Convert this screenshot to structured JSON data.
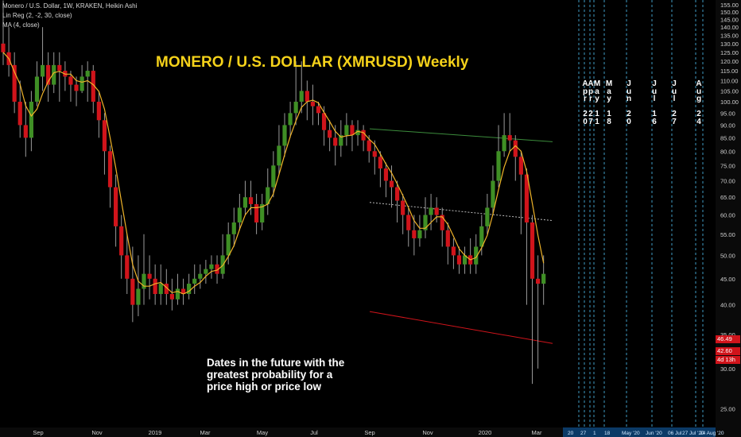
{
  "legend": {
    "line1": "Monero / U.S. Dollar, 1W, KRAKEN, Heikin Ashi",
    "line2": "Lin Reg (2, -2, 30, close)",
    "line3": "MA (4, close)"
  },
  "title": "MONERO / U.S. DOLLAR (XMRUSD) Weekly",
  "annotation": [
    "Dates in the future with the",
    "greatest probability for a",
    "price high or price low"
  ],
  "price_tags": {
    "current": "46.49",
    "low": "42.60",
    "countdown": "4d 13h"
  },
  "future_dates_vertical": [
    {
      "month": "Apr",
      "day": "20"
    },
    {
      "month": "Apr",
      "day": "27"
    },
    {
      "month": "May",
      "day": "11"
    },
    {
      "month": "May",
      "day": "18"
    },
    {
      "month": "Jun",
      "day": "20"
    },
    {
      "month": "Jul",
      "day": "16"
    },
    {
      "month": "Jul",
      "day": "27"
    },
    {
      "month": "Aug",
      "day": "24"
    }
  ],
  "future_date_axis_labels": [
    "20",
    "27",
    "1",
    "18",
    "May '20",
    "Jun '20",
    "06 Jul",
    "27 Jul '20",
    "24 Aug '20"
  ],
  "colors": {
    "background": "#000000",
    "bull": "#3f8f25",
    "bear": "#d0141b",
    "ma": "#f0b429",
    "channel_upper": "#3c8c3c",
    "channel_lower": "#d0141b",
    "vline": "#4fc3f7",
    "title": "#f5d21a"
  },
  "chart_data": {
    "type": "candlestick",
    "title": "MONERO / U.S. DOLLAR (XMRUSD) Weekly",
    "x_tick_labels": [
      "Sep",
      "Nov",
      "2019",
      "Mar",
      "May",
      "Jul",
      "Sep",
      "Nov",
      "2020",
      "Mar"
    ],
    "y_tick_labels": [
      "25.00",
      "30.00",
      "35.00",
      "40.00",
      "45.00",
      "50.00",
      "55.00",
      "60.00",
      "65.00",
      "70.00",
      "75.00",
      "80.00",
      "85.00",
      "90.00",
      "95.00",
      "100.00",
      "105.00",
      "110.00",
      "115.00",
      "120.00",
      "125.00",
      "130.00",
      "135.00",
      "140.00",
      "145.00",
      "150.00",
      "155.00"
    ],
    "ylim": [
      23,
      156
    ],
    "scale": "log",
    "grid": false,
    "series": [
      {
        "type": "heikin-ashi",
        "open_close_high_low_weekly": [
          [
            130,
            125,
            158,
            118
          ],
          [
            125,
            118,
            140,
            112
          ],
          [
            118,
            100,
            125,
            95
          ],
          [
            100,
            90,
            110,
            85
          ],
          [
            90,
            85,
            100,
            78
          ],
          [
            85,
            100,
            105,
            80
          ],
          [
            100,
            112,
            120,
            98
          ],
          [
            112,
            118,
            140,
            105
          ],
          [
            118,
            108,
            125,
            100
          ],
          [
            108,
            118,
            125,
            104
          ],
          [
            118,
            115,
            125,
            100
          ],
          [
            115,
            112,
            120,
            105
          ],
          [
            112,
            108,
            115,
            100
          ],
          [
            108,
            105,
            112,
            98
          ],
          [
            105,
            112,
            118,
            104
          ],
          [
            112,
            115,
            120,
            100
          ],
          [
            115,
            100,
            118,
            95
          ],
          [
            100,
            92,
            105,
            85
          ],
          [
            92,
            80,
            95,
            72
          ],
          [
            80,
            68,
            82,
            62
          ],
          [
            68,
            57,
            72,
            52
          ],
          [
            57,
            50,
            60,
            45
          ],
          [
            50,
            45,
            55,
            42
          ],
          [
            45,
            40,
            52,
            37
          ],
          [
            40,
            43,
            50,
            38
          ],
          [
            43,
            46,
            55,
            40
          ],
          [
            46,
            45,
            50,
            41
          ],
          [
            45,
            42,
            48,
            40
          ],
          [
            42,
            44,
            48,
            40
          ],
          [
            44,
            42,
            47,
            40
          ],
          [
            42,
            41,
            45,
            39
          ],
          [
            41,
            43,
            46,
            40
          ],
          [
            43,
            42,
            45,
            40
          ],
          [
            42,
            44,
            46,
            41
          ],
          [
            44,
            45,
            48,
            42
          ],
          [
            45,
            46,
            48,
            43
          ],
          [
            46,
            47,
            49,
            44
          ],
          [
            47,
            48,
            50,
            45
          ],
          [
            48,
            46,
            50,
            44
          ],
          [
            46,
            50,
            55,
            45
          ],
          [
            50,
            55,
            58,
            48
          ],
          [
            55,
            58,
            62,
            52
          ],
          [
            58,
            62,
            66,
            56
          ],
          [
            62,
            65,
            70,
            60
          ],
          [
            65,
            63,
            70,
            60
          ],
          [
            63,
            58,
            66,
            55
          ],
          [
            58,
            63,
            66,
            56
          ],
          [
            63,
            68,
            74,
            60
          ],
          [
            68,
            75,
            80,
            65
          ],
          [
            75,
            82,
            90,
            72
          ],
          [
            82,
            90,
            95,
            78
          ],
          [
            90,
            95,
            100,
            85
          ],
          [
            95,
            100,
            120,
            90
          ],
          [
            100,
            105,
            120,
            95
          ],
          [
            105,
            100,
            110,
            92
          ],
          [
            100,
            98,
            108,
            90
          ],
          [
            98,
            95,
            100,
            90
          ],
          [
            95,
            88,
            98,
            82
          ],
          [
            88,
            85,
            92,
            80
          ],
          [
            85,
            82,
            90,
            75
          ],
          [
            82,
            86,
            92,
            78
          ],
          [
            86,
            90,
            95,
            82
          ],
          [
            90,
            86,
            92,
            80
          ],
          [
            86,
            88,
            92,
            82
          ],
          [
            88,
            84,
            90,
            80
          ],
          [
            84,
            80,
            86,
            76
          ],
          [
            80,
            78,
            84,
            72
          ],
          [
            78,
            74,
            80,
            68
          ],
          [
            74,
            70,
            76,
            65
          ],
          [
            70,
            68,
            75,
            62
          ],
          [
            68,
            64,
            70,
            58
          ],
          [
            64,
            60,
            66,
            55
          ],
          [
            60,
            56,
            62,
            52
          ],
          [
            56,
            54,
            60,
            50
          ],
          [
            54,
            56,
            60,
            52
          ],
          [
            56,
            60,
            65,
            54
          ],
          [
            60,
            62,
            66,
            56
          ],
          [
            62,
            60,
            65,
            58
          ],
          [
            60,
            56,
            62,
            52
          ],
          [
            56,
            52,
            58,
            48
          ],
          [
            52,
            50,
            54,
            47
          ],
          [
            50,
            48,
            52,
            46
          ],
          [
            48,
            50,
            52,
            46
          ],
          [
            50,
            48,
            54,
            46
          ],
          [
            48,
            52,
            55,
            46
          ],
          [
            52,
            57,
            60,
            50
          ],
          [
            57,
            62,
            66,
            55
          ],
          [
            62,
            70,
            75,
            60
          ],
          [
            70,
            80,
            90,
            68
          ],
          [
            80,
            86,
            95,
            78
          ],
          [
            86,
            84,
            95,
            80
          ],
          [
            84,
            78,
            86,
            70
          ],
          [
            78,
            72,
            80,
            55
          ],
          [
            72,
            58,
            74,
            40
          ],
          [
            58,
            45,
            60,
            28
          ],
          [
            45,
            44,
            50,
            30
          ],
          [
            44,
            46,
            50,
            40
          ]
        ]
      },
      {
        "name": "MA (4, close)",
        "type": "line"
      },
      {
        "name": "Lin Reg (2, -2, 30, close)",
        "type": "channel"
      }
    ]
  }
}
